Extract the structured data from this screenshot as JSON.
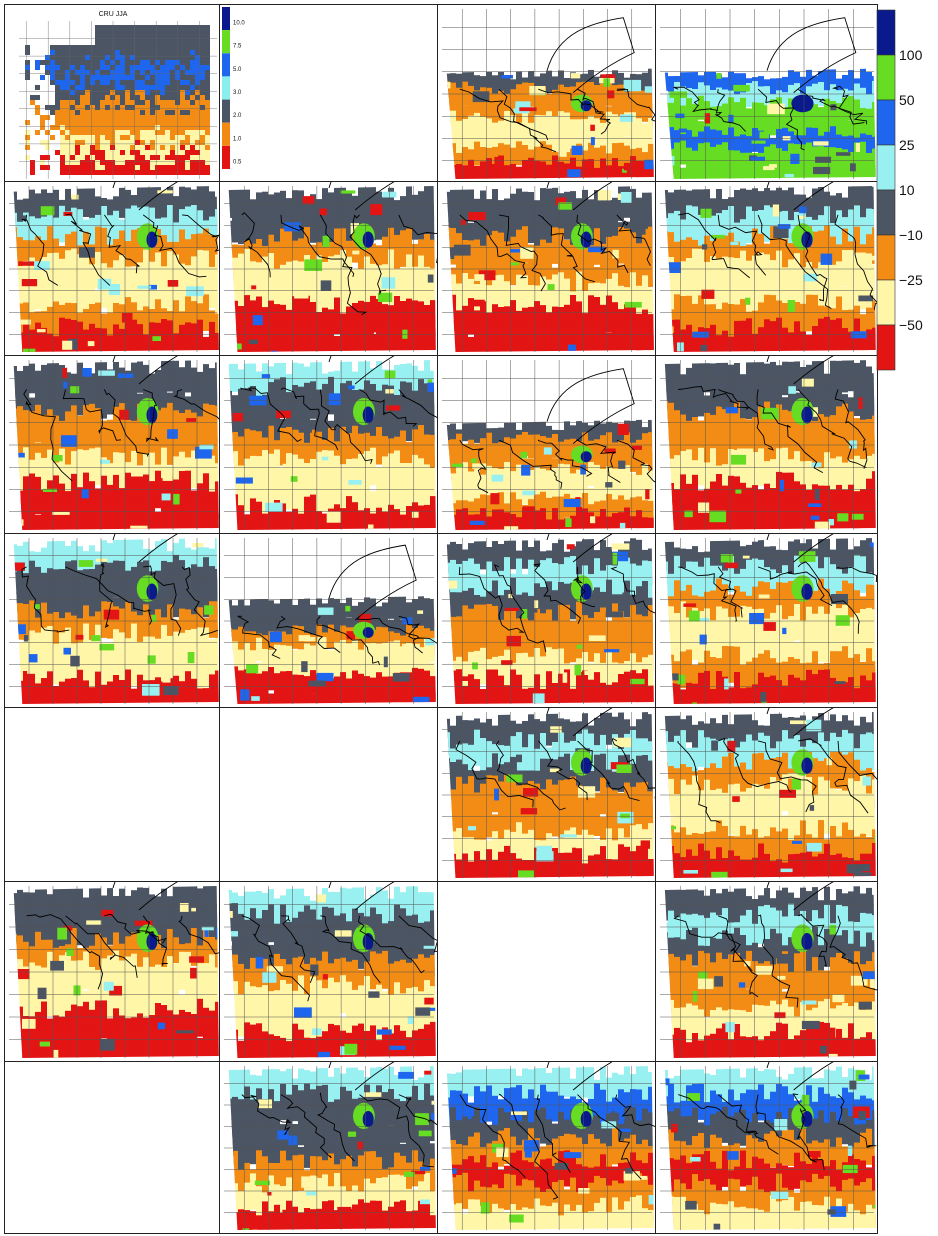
{
  "figure": {
    "panel_title": "CRU JJA",
    "small_colorbar_labels": [
      "10.0",
      "7.5",
      "5.0",
      "3.0",
      "2.0",
      "1.0",
      "0.5"
    ],
    "small_colorbar_colors": [
      "#0a1a8c",
      "#66dd22",
      "#1f66ee",
      "#88eeee",
      "#4a5566",
      "#f28a14",
      "#e31414"
    ],
    "main_colorbar_labels": [
      "100",
      "50",
      "25",
      "10",
      "−10",
      "−25",
      "−50"
    ],
    "main_colorbar_colors": [
      "#0a1a8c",
      "#66dd22",
      "#1f66ee",
      "#99f0f0",
      "#4b5563",
      "#f28c14",
      "#fff6a8",
      "#e31414"
    ]
  },
  "palette": {
    "dark": "#0a1a8c",
    "green": "#66dd22",
    "blue": "#1f66ee",
    "cyan": "#99f0f0",
    "gray": "#4b5563",
    "orange": "#f28c14",
    "yellow": "#fff6a8",
    "red": "#e31414"
  },
  "panels": [
    {
      "id": "r0c0",
      "kind": "abs"
    },
    {
      "id": "r0c1",
      "kind": "colorbar"
    },
    {
      "id": "r0c2",
      "kind": "map",
      "north": "white",
      "pattern": "A"
    },
    {
      "id": "r0c3",
      "kind": "map",
      "north": "white",
      "pattern": "G"
    },
    {
      "id": "r1c0",
      "kind": "map",
      "pattern": "B"
    },
    {
      "id": "r1c1",
      "kind": "map",
      "pattern": "C"
    },
    {
      "id": "r1c2",
      "kind": "map",
      "pattern": "D"
    },
    {
      "id": "r1c3",
      "kind": "map",
      "pattern": "B"
    },
    {
      "id": "r2c0",
      "kind": "map",
      "pattern": "D"
    },
    {
      "id": "r2c1",
      "kind": "map",
      "pattern": "E"
    },
    {
      "id": "r2c2",
      "kind": "map",
      "north": "white",
      "pattern": "A"
    },
    {
      "id": "r2c3",
      "kind": "map",
      "pattern": "D"
    },
    {
      "id": "r3c0",
      "kind": "map",
      "pattern": "E"
    },
    {
      "id": "r3c1",
      "kind": "map",
      "north": "white",
      "pattern": "C"
    },
    {
      "id": "r3c2",
      "kind": "map",
      "pattern": "F"
    },
    {
      "id": "r3c3",
      "kind": "map",
      "pattern": "B"
    },
    {
      "id": "r4c0",
      "kind": "empty"
    },
    {
      "id": "r4c1",
      "kind": "empty"
    },
    {
      "id": "r4c2",
      "kind": "map",
      "pattern": "F"
    },
    {
      "id": "r4c3",
      "kind": "map",
      "pattern": "B"
    },
    {
      "id": "r5c0",
      "kind": "map",
      "pattern": "C"
    },
    {
      "id": "r5c1",
      "kind": "map",
      "pattern": "E"
    },
    {
      "id": "r5c2",
      "kind": "empty"
    },
    {
      "id": "r5c3",
      "kind": "map",
      "pattern": "F"
    },
    {
      "id": "r6c0",
      "kind": "empty"
    },
    {
      "id": "r6c1",
      "kind": "map",
      "pattern": "H"
    },
    {
      "id": "r6c2",
      "kind": "map",
      "pattern": "I"
    },
    {
      "id": "r6c3",
      "kind": "map",
      "pattern": "I"
    }
  ]
}
